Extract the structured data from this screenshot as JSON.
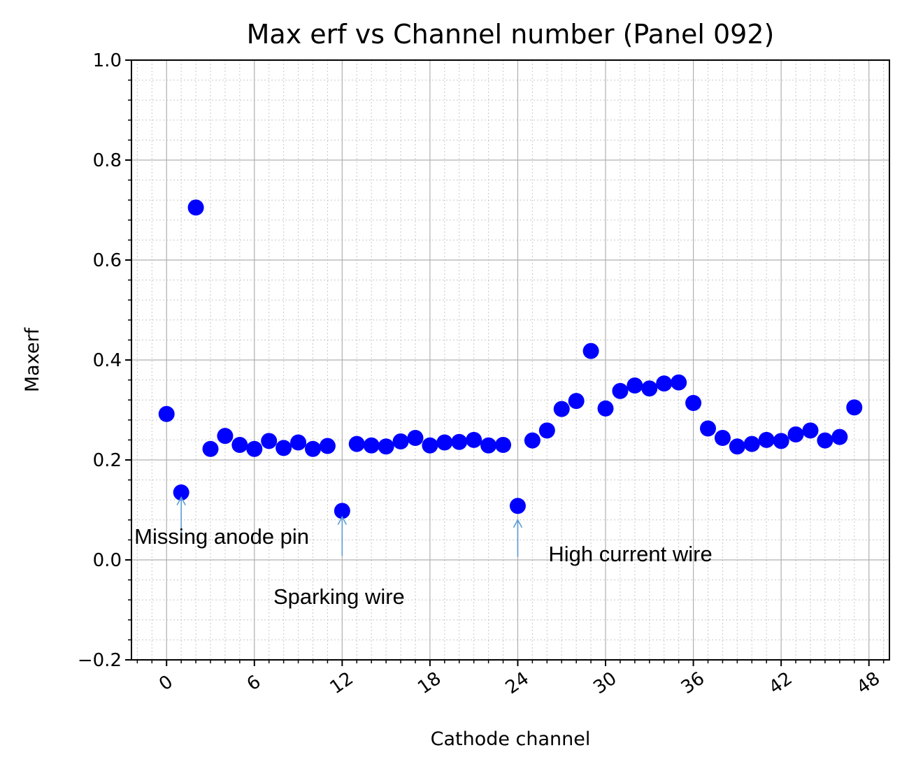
{
  "chart_data": {
    "type": "scatter",
    "title": "Max erf vs Channel number (Panel 092)",
    "xlabel": "Cathode channel",
    "ylabel": "Maxerf",
    "xlim": [
      -2.4,
      49.4
    ],
    "ylim": [
      -0.2,
      1.0
    ],
    "xticks": [
      0,
      6,
      12,
      18,
      24,
      30,
      36,
      42,
      48
    ],
    "yticks": [
      -0.2,
      0.0,
      0.2,
      0.4,
      0.6,
      0.8,
      1.0
    ],
    "ytick_labels": [
      "−0.2",
      "0.0",
      "0.2",
      "0.4",
      "0.6",
      "0.8",
      "1.0"
    ],
    "grid": true,
    "minor_grid": true,
    "marker_color": "#0000ff",
    "arrow_color": "#5b9bd5",
    "x": [
      0,
      1,
      2,
      3,
      4,
      5,
      6,
      7,
      8,
      9,
      10,
      11,
      12,
      13,
      14,
      15,
      16,
      17,
      18,
      19,
      20,
      21,
      22,
      23,
      24,
      25,
      26,
      27,
      28,
      29,
      30,
      31,
      32,
      33,
      34,
      35,
      36,
      37,
      38,
      39,
      40,
      41,
      42,
      43,
      44,
      45,
      46,
      47
    ],
    "y": [
      0.292,
      0.135,
      0.705,
      0.222,
      0.248,
      0.23,
      0.222,
      0.238,
      0.224,
      0.235,
      0.222,
      0.228,
      0.098,
      0.232,
      0.229,
      0.227,
      0.237,
      0.244,
      0.229,
      0.235,
      0.236,
      0.24,
      0.229,
      0.23,
      0.108,
      0.239,
      0.259,
      0.302,
      0.318,
      0.418,
      0.303,
      0.338,
      0.349,
      0.343,
      0.353,
      0.355,
      0.314,
      0.263,
      0.244,
      0.227,
      0.232,
      0.24,
      0.238,
      0.251,
      0.259,
      0.239,
      0.246,
      0.305
    ],
    "annotations": [
      {
        "text": "Missing anode pin",
        "arrow_x": 1,
        "arrow_y_from": 0.05,
        "arrow_y_to": 0.125,
        "text_x": -2.2,
        "text_y": 0.032
      },
      {
        "text": "Sparking wire",
        "arrow_x": 12,
        "arrow_y_from": 0.008,
        "arrow_y_to": 0.086,
        "text_x": 7.3,
        "text_y": -0.088
      },
      {
        "text": "High current wire",
        "arrow_x": 24,
        "arrow_y_from": 0.006,
        "arrow_y_to": 0.08,
        "text_x": 26.1,
        "text_y": -0.003
      }
    ]
  }
}
